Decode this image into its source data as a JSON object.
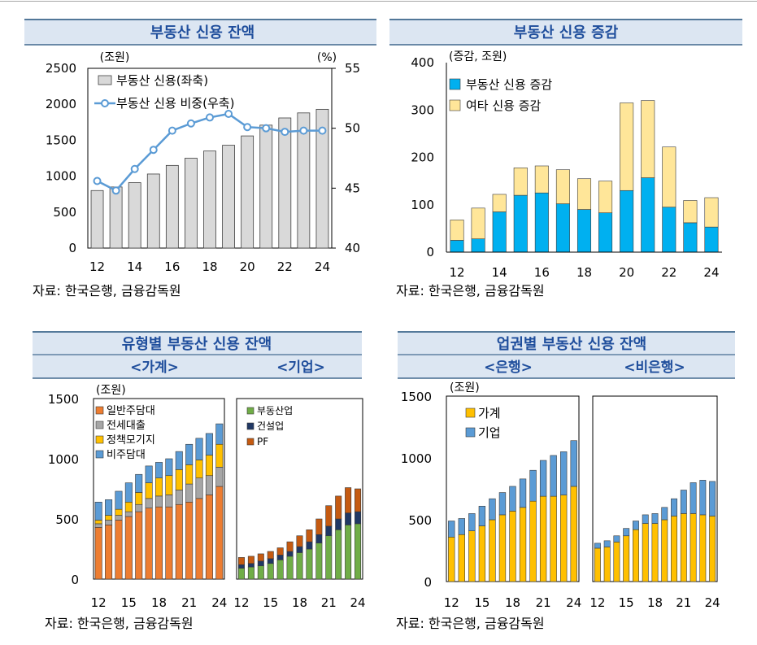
{
  "colors": {
    "header_bg": "#dce6f2",
    "header_rule": "#1f4e79",
    "title_text": "#1f4e9c",
    "gray_bar": "#d9d9d9",
    "line_blue": "#5b9bd5",
    "cyan": "#00b0f0",
    "pale_yellow": "#ffe699",
    "orange": "#ed7d31",
    "gray": "#a6a6a6",
    "gold": "#ffc000",
    "blue": "#5b9bd5",
    "green": "#70ad47",
    "navy": "#203864",
    "brown": "#c55a11"
  },
  "panels": {
    "tl": {
      "title": "부동산 신용 잔액",
      "source": "자료: 한국은행, 금융감독원"
    },
    "tr": {
      "title": "부동산 신용 증감",
      "source": "자료: 한국은행, 금융감독원"
    },
    "bl": {
      "title": "유형별 부동산 신용 잔액",
      "sub_left": "<가계>",
      "sub_right": "<기업>",
      "source": "자료: 한국은행, 금융감독원"
    },
    "br": {
      "title": "업권별 부동산 신용 잔액",
      "sub_left": "<은행>",
      "sub_right": "<비은행>",
      "source": "자료: 한국은행, 금융감독원"
    }
  },
  "chart_data": [
    {
      "id": "tl",
      "type": "bar+line",
      "title": "부동산 신용 잔액",
      "left_unit": "(조원)",
      "right_unit": "(%)",
      "x": [
        12,
        13,
        14,
        15,
        16,
        17,
        18,
        19,
        20,
        21,
        22,
        23,
        24
      ],
      "xticks": [
        "12",
        "14",
        "16",
        "18",
        "20",
        "22",
        "24"
      ],
      "ylim": [
        0,
        2500
      ],
      "yticks": [
        "0",
        "500",
        "1000",
        "1500",
        "2000",
        "2500"
      ],
      "y2lim": [
        40,
        55
      ],
      "y2ticks": [
        "40",
        "45",
        "50",
        "55"
      ],
      "series": [
        {
          "name": "부동산 신용(좌축)",
          "type": "bar",
          "values": [
            800,
            850,
            910,
            1030,
            1150,
            1250,
            1350,
            1430,
            1560,
            1710,
            1810,
            1880,
            1930
          ]
        },
        {
          "name": "부동산 신용 비중(우축)",
          "type": "line",
          "values": [
            45.6,
            44.8,
            46.6,
            48.2,
            49.8,
            50.4,
            50.9,
            51.2,
            50.1,
            50.0,
            49.7,
            49.8,
            49.8
          ]
        }
      ]
    },
    {
      "id": "tr",
      "type": "stacked-bar",
      "title": "부동산 신용 증감",
      "unit": "(증감, 조원)",
      "x": [
        12,
        13,
        14,
        15,
        16,
        17,
        18,
        19,
        20,
        21,
        22,
        23,
        24
      ],
      "xticks": [
        "12",
        "14",
        "16",
        "18",
        "20",
        "22",
        "24"
      ],
      "ylim": [
        0,
        400
      ],
      "yticks": [
        "0",
        "100",
        "200",
        "300",
        "400"
      ],
      "series": [
        {
          "name": "부동산 신용 증감",
          "values": [
            25,
            28,
            85,
            120,
            125,
            102,
            90,
            83,
            130,
            157,
            95,
            62,
            53
          ]
        },
        {
          "name": "여타 신용 증감",
          "values": [
            43,
            65,
            37,
            58,
            57,
            72,
            65,
            67,
            185,
            163,
            127,
            47,
            62
          ]
        }
      ]
    },
    {
      "id": "bl-household",
      "type": "stacked-bar",
      "title": "유형별 부동산 신용 잔액 <가계>",
      "unit": "(조원)",
      "x": [
        12,
        13,
        14,
        15,
        16,
        17,
        18,
        19,
        20,
        21,
        22,
        23,
        24
      ],
      "xticks": [
        "12",
        "15",
        "18",
        "21",
        "24"
      ],
      "ylim": [
        0,
        1500
      ],
      "yticks": [
        "0",
        "500",
        "1000",
        "1500"
      ],
      "series": [
        {
          "name": "일반주담대",
          "values": [
            430,
            450,
            490,
            520,
            560,
            590,
            600,
            600,
            620,
            640,
            670,
            700,
            770
          ]
        },
        {
          "name": "전세대출",
          "values": [
            30,
            40,
            40,
            40,
            60,
            80,
            90,
            100,
            120,
            150,
            170,
            160,
            160
          ]
        },
        {
          "name": "정책모기지",
          "values": [
            30,
            40,
            50,
            80,
            100,
            130,
            150,
            160,
            170,
            160,
            150,
            170,
            190
          ]
        },
        {
          "name": "비주담대",
          "values": [
            150,
            130,
            150,
            160,
            150,
            140,
            130,
            140,
            150,
            170,
            180,
            180,
            170
          ]
        }
      ]
    },
    {
      "id": "bl-corporate",
      "type": "stacked-bar",
      "title": "유형별 부동산 신용 잔액 <기업>",
      "x": [
        12,
        13,
        14,
        15,
        16,
        17,
        18,
        19,
        20,
        21,
        22,
        23,
        24
      ],
      "xticks": [
        "12",
        "15",
        "18",
        "21",
        "24"
      ],
      "ylim": [
        0,
        1500
      ],
      "series": [
        {
          "name": "부동산업",
          "values": [
            90,
            100,
            110,
            130,
            160,
            190,
            220,
            250,
            300,
            360,
            410,
            450,
            460
          ]
        },
        {
          "name": "건설업",
          "values": [
            30,
            30,
            40,
            40,
            40,
            40,
            50,
            60,
            70,
            80,
            90,
            100,
            100
          ]
        },
        {
          "name": "PF",
          "values": [
            60,
            60,
            60,
            60,
            60,
            80,
            90,
            100,
            130,
            170,
            190,
            210,
            190
          ]
        }
      ]
    },
    {
      "id": "br-bank",
      "type": "stacked-bar",
      "title": "업권별 부동산 신용 잔액 <은행>",
      "unit": "(조원)",
      "x": [
        12,
        13,
        14,
        15,
        16,
        17,
        18,
        19,
        20,
        21,
        22,
        23,
        24
      ],
      "xticks": [
        "12",
        "15",
        "18",
        "21",
        "24"
      ],
      "ylim": [
        0,
        1500
      ],
      "yticks": [
        "0",
        "500",
        "1000",
        "1500"
      ],
      "series": [
        {
          "name": "가계",
          "values": [
            360,
            380,
            410,
            450,
            500,
            540,
            570,
            600,
            650,
            690,
            690,
            700,
            770
          ]
        },
        {
          "name": "기업",
          "values": [
            130,
            130,
            140,
            160,
            170,
            180,
            200,
            230,
            250,
            290,
            330,
            350,
            370
          ]
        }
      ]
    },
    {
      "id": "br-nonbank",
      "type": "stacked-bar",
      "title": "업권별 부동산 신용 잔액 <비은행>",
      "x": [
        12,
        13,
        14,
        15,
        16,
        17,
        18,
        19,
        20,
        21,
        22,
        23,
        24
      ],
      "xticks": [
        "12",
        "15",
        "18",
        "21",
        "24"
      ],
      "ylim": [
        0,
        1500
      ],
      "series": [
        {
          "name": "가계",
          "values": [
            270,
            280,
            320,
            370,
            420,
            470,
            470,
            500,
            530,
            550,
            550,
            540,
            530
          ]
        },
        {
          "name": "기업",
          "values": [
            40,
            50,
            50,
            60,
            70,
            70,
            80,
            100,
            140,
            190,
            250,
            280,
            280
          ]
        }
      ]
    }
  ]
}
